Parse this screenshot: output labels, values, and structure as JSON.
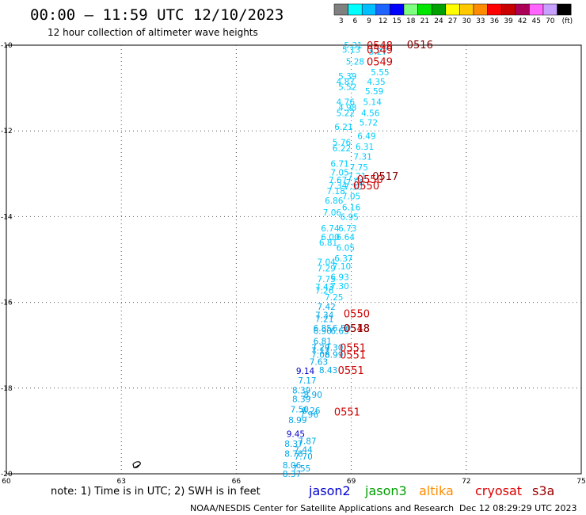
{
  "title": "00:00 – 11:59 UTC 12/10/2023",
  "subtitle": "12 hour collection of altimeter wave heights",
  "note": "note: 1) Time is in UTC; 2) SWH is in feet",
  "credit_left": "NOAA/NESDIS Center for Satellite Applications and Research",
  "credit_right": "Dec 12 08:29:29 UTC 2023",
  "satellites": [
    {
      "name": "jason2",
      "color": "#0000cc"
    },
    {
      "name": "jason3",
      "color": "#00a000"
    },
    {
      "name": "altika",
      "color": "#ff8c00"
    },
    {
      "name": "cryosat",
      "color": "#dd0000"
    },
    {
      "name": "s3a",
      "color": "#990000"
    }
  ],
  "colorbar": {
    "colors": [
      "#808080",
      "#00ffff",
      "#00bfff",
      "#1e64ff",
      "#0000ff",
      "#7fff7f",
      "#00e600",
      "#00a000",
      "#ffff00",
      "#ffc800",
      "#ff8c00",
      "#ff0000",
      "#c80000",
      "#aa0055",
      "#ff66ff",
      "#c8a0ff",
      "#000000"
    ],
    "labels": [
      "3",
      "6",
      "9",
      "12",
      "15",
      "18",
      "21",
      "24",
      "27",
      "30",
      "33",
      "36",
      "39",
      "42",
      "45",
      "70",
      "(ft)"
    ]
  },
  "chart_data": {
    "type": "scatter",
    "x_axis": {
      "min": 60,
      "max": 75,
      "ticks": [
        60,
        63,
        66,
        69,
        72,
        75
      ]
    },
    "y_axis": {
      "min": -20,
      "max": -10,
      "ticks": [
        -10,
        -12,
        -14,
        -16,
        -18,
        -20
      ]
    },
    "grid": true,
    "swh_points": [
      {
        "lon": 69.05,
        "lat": -10.0,
        "v": "5.31",
        "c": "#00ccff"
      },
      {
        "lon": 69.0,
        "lat": -10.1,
        "v": "5.13",
        "c": "#00ccff"
      },
      {
        "lon": 69.7,
        "lat": -10.15,
        "v": "5.27",
        "c": "#00ccff"
      },
      {
        "lon": 69.1,
        "lat": -10.38,
        "v": "5.28",
        "c": "#00ccff"
      },
      {
        "lon": 69.75,
        "lat": -10.63,
        "v": "5.55",
        "c": "#00ccff"
      },
      {
        "lon": 68.9,
        "lat": -10.72,
        "v": "5.39",
        "c": "#00ccff"
      },
      {
        "lon": 68.85,
        "lat": -10.85,
        "v": "4.87",
        "c": "#00ccff"
      },
      {
        "lon": 69.65,
        "lat": -10.85,
        "v": "4.35",
        "c": "#00ccff"
      },
      {
        "lon": 68.9,
        "lat": -10.97,
        "v": "5.52",
        "c": "#00ccff"
      },
      {
        "lon": 69.6,
        "lat": -11.07,
        "v": "5.59",
        "c": "#00ccff"
      },
      {
        "lon": 68.85,
        "lat": -11.32,
        "v": "4.76",
        "c": "#00ccff"
      },
      {
        "lon": 69.55,
        "lat": -11.32,
        "v": "5.14",
        "c": "#00ccff"
      },
      {
        "lon": 68.9,
        "lat": -11.45,
        "v": "4.98",
        "c": "#00ccff"
      },
      {
        "lon": 68.85,
        "lat": -11.58,
        "v": "5.22",
        "c": "#00ccff"
      },
      {
        "lon": 69.5,
        "lat": -11.58,
        "v": "4.56",
        "c": "#00ccff"
      },
      {
        "lon": 68.8,
        "lat": -11.9,
        "v": "6.21",
        "c": "#00ccff"
      },
      {
        "lon": 69.45,
        "lat": -11.8,
        "v": "5.72",
        "c": "#00ccff"
      },
      {
        "lon": 69.4,
        "lat": -12.12,
        "v": "6.49",
        "c": "#00ccff"
      },
      {
        "lon": 68.75,
        "lat": -12.26,
        "v": "5.76",
        "c": "#00ccff"
      },
      {
        "lon": 68.75,
        "lat": -12.4,
        "v": "6.22",
        "c": "#00ccff"
      },
      {
        "lon": 69.35,
        "lat": -12.37,
        "v": "6.31",
        "c": "#00ccff"
      },
      {
        "lon": 69.3,
        "lat": -12.6,
        "v": "7.31",
        "c": "#00ccff"
      },
      {
        "lon": 68.7,
        "lat": -12.76,
        "v": "6.71",
        "c": "#00ccff"
      },
      {
        "lon": 69.2,
        "lat": -12.85,
        "v": "7.75",
        "c": "#00ccff"
      },
      {
        "lon": 68.7,
        "lat": -12.97,
        "v": "7.05",
        "c": "#00ccff"
      },
      {
        "lon": 69.15,
        "lat": -13.05,
        "v": "7.21",
        "c": "#00ccff"
      },
      {
        "lon": 68.65,
        "lat": -13.14,
        "v": "7.67",
        "c": "#00ccff"
      },
      {
        "lon": 69.1,
        "lat": -13.2,
        "v": "7.58",
        "c": "#00ccff"
      },
      {
        "lon": 68.65,
        "lat": -13.27,
        "v": "7.34",
        "c": "#00ccff"
      },
      {
        "lon": 69.05,
        "lat": -13.3,
        "v": "7.30",
        "c": "#00ccff"
      },
      {
        "lon": 68.6,
        "lat": -13.4,
        "v": "7.18",
        "c": "#00ccff"
      },
      {
        "lon": 69.0,
        "lat": -13.52,
        "v": "7.05",
        "c": "#00ccff"
      },
      {
        "lon": 68.55,
        "lat": -13.62,
        "v": "6.86",
        "c": "#00ccff"
      },
      {
        "lon": 69.0,
        "lat": -13.78,
        "v": "6.16",
        "c": "#00ccff"
      },
      {
        "lon": 68.5,
        "lat": -13.9,
        "v": "7.06",
        "c": "#00ccff"
      },
      {
        "lon": 68.95,
        "lat": -14.0,
        "v": "6.95",
        "c": "#00ccff"
      },
      {
        "lon": 68.45,
        "lat": -14.27,
        "v": "6.74",
        "c": "#00ccff"
      },
      {
        "lon": 68.9,
        "lat": -14.27,
        "v": "6.73",
        "c": "#00ccff"
      },
      {
        "lon": 68.45,
        "lat": -14.47,
        "v": "6.00",
        "c": "#00ccff"
      },
      {
        "lon": 68.85,
        "lat": -14.47,
        "v": "6.64",
        "c": "#00ccff"
      },
      {
        "lon": 68.4,
        "lat": -14.6,
        "v": "6.81",
        "c": "#00ccff"
      },
      {
        "lon": 68.85,
        "lat": -14.72,
        "v": "6.05",
        "c": "#00ccff"
      },
      {
        "lon": 68.8,
        "lat": -14.97,
        "v": "6.37",
        "c": "#00ccff"
      },
      {
        "lon": 68.35,
        "lat": -15.06,
        "v": "7.04",
        "c": "#00ccff"
      },
      {
        "lon": 68.75,
        "lat": -15.16,
        "v": "7.10",
        "c": "#00ccff"
      },
      {
        "lon": 68.35,
        "lat": -15.2,
        "v": "7.29",
        "c": "#00ccff"
      },
      {
        "lon": 68.35,
        "lat": -15.45,
        "v": "7.75",
        "c": "#00ccff"
      },
      {
        "lon": 68.7,
        "lat": -15.41,
        "v": "6.93",
        "c": "#00ccff"
      },
      {
        "lon": 68.3,
        "lat": -15.64,
        "v": "7.43",
        "c": "#00ccff"
      },
      {
        "lon": 68.7,
        "lat": -15.62,
        "v": "7.30",
        "c": "#00ccff"
      },
      {
        "lon": 68.3,
        "lat": -15.72,
        "v": "7.26",
        "c": "#00ccff"
      },
      {
        "lon": 68.55,
        "lat": -15.88,
        "v": "7.25",
        "c": "#00ccff"
      },
      {
        "lon": 68.35,
        "lat": -16.1,
        "v": "7.42",
        "c": "#00a8e8"
      },
      {
        "lon": 68.3,
        "lat": -16.29,
        "v": "7.34",
        "c": "#00a8e8"
      },
      {
        "lon": 68.3,
        "lat": -16.39,
        "v": "7.21",
        "c": "#00a8e8"
      },
      {
        "lon": 68.25,
        "lat": -16.6,
        "v": "6.85",
        "c": "#00a8e8"
      },
      {
        "lon": 68.75,
        "lat": -16.6,
        "v": "6.50",
        "c": "#00a8e8"
      },
      {
        "lon": 68.25,
        "lat": -16.66,
        "v": "6.90",
        "c": "#00a8e8"
      },
      {
        "lon": 68.7,
        "lat": -16.66,
        "v": "6.65",
        "c": "#00a8e8"
      },
      {
        "lon": 68.25,
        "lat": -16.9,
        "v": "6.81",
        "c": "#00a8e8"
      },
      {
        "lon": 68.2,
        "lat": -17.05,
        "v": "7.29",
        "c": "#00a8e8"
      },
      {
        "lon": 68.55,
        "lat": -17.05,
        "v": "7.30",
        "c": "#00a8e8"
      },
      {
        "lon": 68.2,
        "lat": -17.13,
        "v": "7.12",
        "c": "#00a8e8"
      },
      {
        "lon": 68.2,
        "lat": -17.22,
        "v": "7.08",
        "c": "#00a8e8"
      },
      {
        "lon": 68.55,
        "lat": -17.22,
        "v": "6.99",
        "c": "#00a8e8"
      },
      {
        "lon": 68.15,
        "lat": -17.38,
        "v": "7.63",
        "c": "#00a8e8"
      },
      {
        "lon": 67.8,
        "lat": -17.6,
        "v": "9.14",
        "c": "#0000cc"
      },
      {
        "lon": 68.4,
        "lat": -17.58,
        "v": "8.43",
        "c": "#00a8e8"
      },
      {
        "lon": 67.85,
        "lat": -17.82,
        "v": "7.17",
        "c": "#00a8e8"
      },
      {
        "lon": 67.7,
        "lat": -18.05,
        "v": "8.39",
        "c": "#00a8e8"
      },
      {
        "lon": 68.0,
        "lat": -18.15,
        "v": "8.90",
        "c": "#00a8e8"
      },
      {
        "lon": 67.7,
        "lat": -18.25,
        "v": "8.39",
        "c": "#00a8e8"
      },
      {
        "lon": 67.65,
        "lat": -18.49,
        "v": "7.50",
        "c": "#00a8e8"
      },
      {
        "lon": 67.95,
        "lat": -18.52,
        "v": "8.26",
        "c": "#00a8e8"
      },
      {
        "lon": 67.9,
        "lat": -18.61,
        "v": "7.96",
        "c": "#00a8e8"
      },
      {
        "lon": 67.6,
        "lat": -18.74,
        "v": "8.99",
        "c": "#00a8e8"
      },
      {
        "lon": 67.55,
        "lat": -19.07,
        "v": "9.45",
        "c": "#0000cc"
      },
      {
        "lon": 67.85,
        "lat": -19.23,
        "v": "7.87",
        "c": "#00a8e8"
      },
      {
        "lon": 67.5,
        "lat": -19.3,
        "v": "8.37",
        "c": "#00a8e8"
      },
      {
        "lon": 67.75,
        "lat": -19.44,
        "v": "7.44",
        "c": "#00a8e8"
      },
      {
        "lon": 67.5,
        "lat": -19.53,
        "v": "8.78",
        "c": "#00a8e8"
      },
      {
        "lon": 67.75,
        "lat": -19.59,
        "v": "7.70",
        "c": "#00a8e8"
      },
      {
        "lon": 67.45,
        "lat": -19.8,
        "v": "8.06",
        "c": "#00a8e8"
      },
      {
        "lon": 67.7,
        "lat": -19.87,
        "v": "7.55",
        "c": "#00a8e8"
      },
      {
        "lon": 67.45,
        "lat": -20.0,
        "v": "8.37",
        "c": "#00a8e8"
      }
    ],
    "time_labels": [
      {
        "lon": 69.4,
        "lat": -10.0,
        "t": "0548",
        "c": "#cc0000"
      },
      {
        "lon": 70.45,
        "lat": -9.98,
        "t": "0516",
        "c": "#880000"
      },
      {
        "lon": 69.4,
        "lat": -10.1,
        "t": "0549",
        "c": "#cc0000"
      },
      {
        "lon": 69.4,
        "lat": -10.38,
        "t": "0549",
        "c": "#cc0000"
      },
      {
        "lon": 69.55,
        "lat": -13.05,
        "t": "0517",
        "c": "#880000"
      },
      {
        "lon": 69.15,
        "lat": -13.12,
        "t": "0550",
        "c": "#cc0000"
      },
      {
        "lon": 69.05,
        "lat": -13.27,
        "t": "0550",
        "c": "#cc0000"
      },
      {
        "lon": 68.8,
        "lat": -16.26,
        "t": "0550",
        "c": "#cc0000"
      },
      {
        "lon": 68.8,
        "lat": -16.6,
        "t": "0548",
        "c": "#cc0000"
      },
      {
        "lon": 68.8,
        "lat": -16.6,
        "t": "0518",
        "c": "#880000"
      },
      {
        "lon": 68.7,
        "lat": -17.05,
        "t": "0551",
        "c": "#cc0000"
      },
      {
        "lon": 68.7,
        "lat": -17.22,
        "t": "0551",
        "c": "#cc0000"
      },
      {
        "lon": 68.65,
        "lat": -17.58,
        "t": "0551",
        "c": "#cc0000"
      },
      {
        "lon": 68.55,
        "lat": -18.55,
        "t": "0551",
        "c": "#cc0000"
      }
    ]
  }
}
